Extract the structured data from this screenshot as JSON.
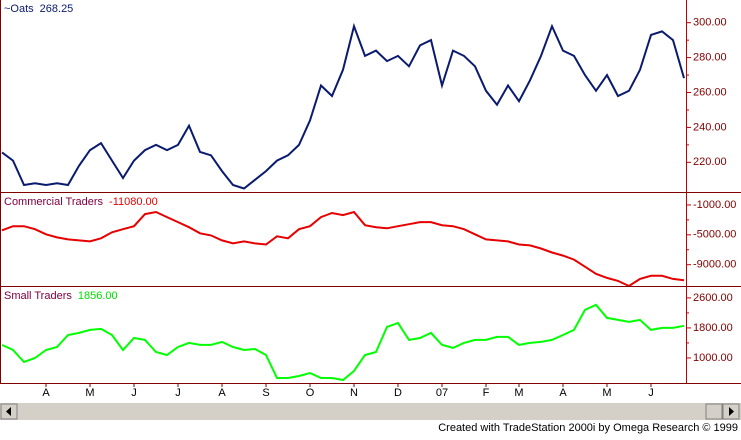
{
  "chart_data": {
    "type": "line",
    "categories": [
      null,
      null,
      null,
      null,
      "A",
      null,
      null,
      null,
      "M",
      null,
      null,
      null,
      "J",
      null,
      null,
      null,
      "J",
      null,
      null,
      null,
      "A",
      null,
      null,
      null,
      "S",
      null,
      null,
      null,
      "O",
      null,
      null,
      null,
      "N",
      null,
      null,
      null,
      "D",
      null,
      null,
      null,
      "07",
      null,
      null,
      null,
      "F",
      null,
      null,
      "M",
      null,
      null,
      null,
      "A",
      null,
      null,
      null,
      "M",
      null,
      null,
      null,
      "J",
      null,
      null,
      null
    ],
    "panels": [
      {
        "name": "~Oats",
        "last_label": "268.25",
        "name_color": "#0a1a6e",
        "last_color": "#0a1a6e",
        "ylim": [
          203,
          313
        ],
        "yticks": [
          {
            "value": 220,
            "label": "220.00"
          },
          {
            "value": 240,
            "label": "240.00"
          },
          {
            "value": 260,
            "label": "260.00"
          },
          {
            "value": 280,
            "label": "280.00"
          },
          {
            "value": 300,
            "label": "300.00"
          }
        ],
        "series": [
          {
            "name": "~Oats",
            "color": "#0a1a6e",
            "values": [
              225.7,
              221,
              207,
              208,
              207,
              208,
              207,
              218,
              227,
              231,
              221,
              211,
              221,
              227,
              230,
              227,
              230,
              241,
              226,
              224,
              215,
              207,
              205,
              210,
              215,
              221,
              224,
              230,
              244,
              264,
              258,
              273,
              298,
              281,
              284,
              278,
              281,
              275,
              287,
              290,
              264,
              284,
              281,
              275,
              261,
              253,
              264,
              255,
              267,
              281,
              298,
              284,
              281,
              270,
              261,
              270,
              258,
              261,
              273,
              293,
              295,
              290,
              268.25
            ]
          }
        ]
      },
      {
        "name": "Commercial Traders",
        "last_label": "-11080.00",
        "name_color": "#800040",
        "last_color": "#e60000",
        "ylim": [
          -11850,
          600
        ],
        "yticks": [
          {
            "value": -9000,
            "label": "-9000.00"
          },
          {
            "value": -5000,
            "label": "-5000.00"
          },
          {
            "value": -1000,
            "label": "-1000.00"
          }
        ],
        "series": [
          {
            "name": "Commercial Traders",
            "color": "#e60000",
            "values": [
              -4390,
              -3850,
              -3850,
              -4250,
              -4930,
              -5340,
              -5610,
              -5750,
              -5880,
              -5470,
              -4660,
              -4250,
              -3850,
              -2220,
              -1950,
              -2630,
              -3300,
              -3980,
              -4800,
              -5070,
              -5750,
              -6150,
              -5880,
              -6150,
              -6290,
              -5200,
              -5470,
              -4250,
              -3850,
              -2630,
              -2080,
              -2360,
              -1950,
              -3710,
              -3980,
              -4120,
              -3850,
              -3580,
              -3300,
              -3300,
              -3710,
              -3850,
              -4250,
              -4930,
              -5610,
              -5750,
              -5880,
              -6290,
              -6420,
              -6830,
              -7370,
              -7780,
              -8320,
              -9270,
              -10220,
              -10760,
              -11170,
              -11850,
              -10900,
              -10490,
              -10490,
              -10900,
              -11080
            ]
          }
        ]
      },
      {
        "name": "Small Traders",
        "last_label": "1856.00",
        "name_color": "#800040",
        "last_color": "#00e000",
        "ylim": [
          360,
          2890
        ],
        "yticks": [
          {
            "value": 1000,
            "label": "1000.00"
          },
          {
            "value": 1800,
            "label": "1800.00"
          },
          {
            "value": 2600,
            "label": "2600.00"
          }
        ],
        "series": [
          {
            "name": "Small Traders",
            "color": "#00ff00",
            "values": [
              1347,
              1213,
              893,
              1000,
              1213,
              1293,
              1613,
              1667,
              1747,
              1773,
              1613,
              1213,
              1533,
              1480,
              1160,
              1080,
              1293,
              1400,
              1347,
              1347,
              1427,
              1293,
              1213,
              1240,
              1080,
              467,
              467,
              520,
              600,
              467,
              467,
              413,
              653,
              1080,
              1160,
              1827,
              1933,
              1480,
              1533,
              1667,
              1347,
              1267,
              1400,
              1480,
              1480,
              1560,
              1560,
              1347,
              1400,
              1427,
              1480,
              1613,
              1747,
              2280,
              2413,
              2067,
              2013,
              1960,
              2013,
              1747,
              1800,
              1800,
              1856
            ]
          }
        ]
      }
    ],
    "footer": "Created with TradeStation 2000i by Omega Research © 1999"
  }
}
